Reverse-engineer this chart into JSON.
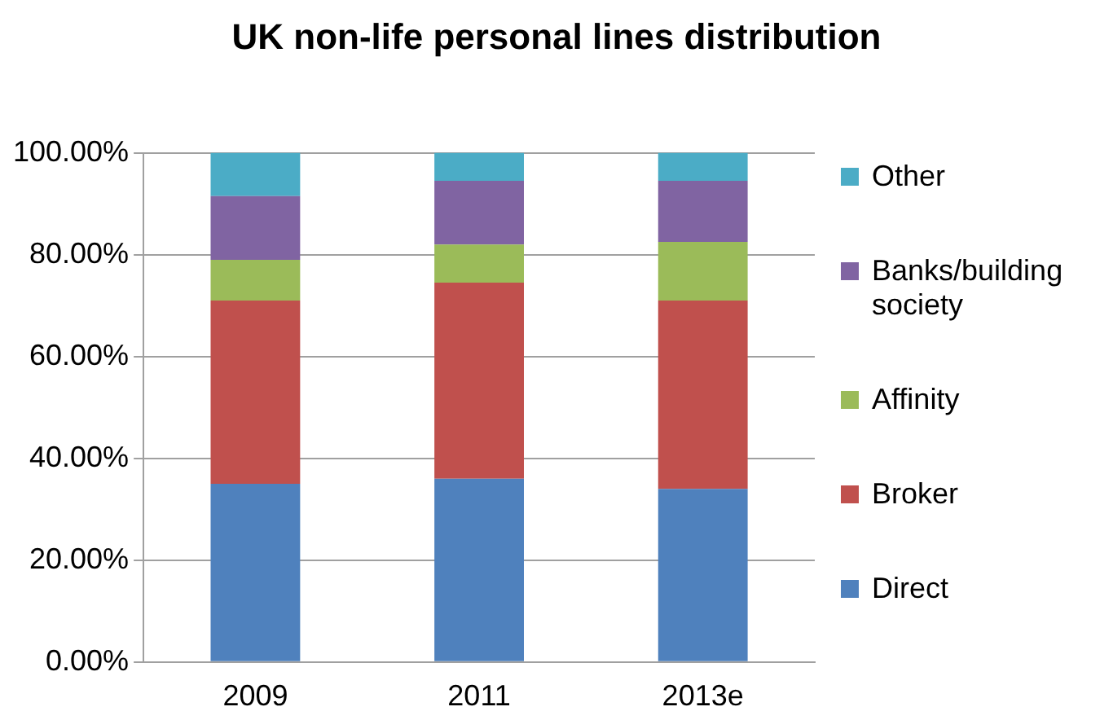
{
  "chart_data": {
    "type": "bar",
    "title": "UK non-life personal lines distribution",
    "categories": [
      "2009",
      "2011",
      "2013e"
    ],
    "stacked": true,
    "series": [
      {
        "name": "Direct",
        "color": "#4f81bd",
        "values": [
          35,
          36,
          34
        ]
      },
      {
        "name": "Broker",
        "color": "#c0504d",
        "values": [
          36,
          38.5,
          37
        ]
      },
      {
        "name": "Affinity",
        "color": "#9bbb59",
        "values": [
          8,
          7.5,
          11.5
        ]
      },
      {
        "name": "Banks/building society",
        "color": "#8064a2",
        "values": [
          12.5,
          12.5,
          12
        ]
      },
      {
        "name": "Other",
        "color": "#4bacc6",
        "values": [
          8.5,
          5.5,
          5.5
        ]
      }
    ],
    "ylim": [
      0,
      100
    ],
    "yticks": [
      {
        "value": 0,
        "label": "0.00%"
      },
      {
        "value": 20,
        "label": "20.00%"
      },
      {
        "value": 40,
        "label": "40.00%"
      },
      {
        "value": 60,
        "label": "60.00%"
      },
      {
        "value": 80,
        "label": "80.00%"
      },
      {
        "value": 100,
        "label": "100.00%"
      }
    ],
    "grid": "y",
    "legend": "right"
  }
}
